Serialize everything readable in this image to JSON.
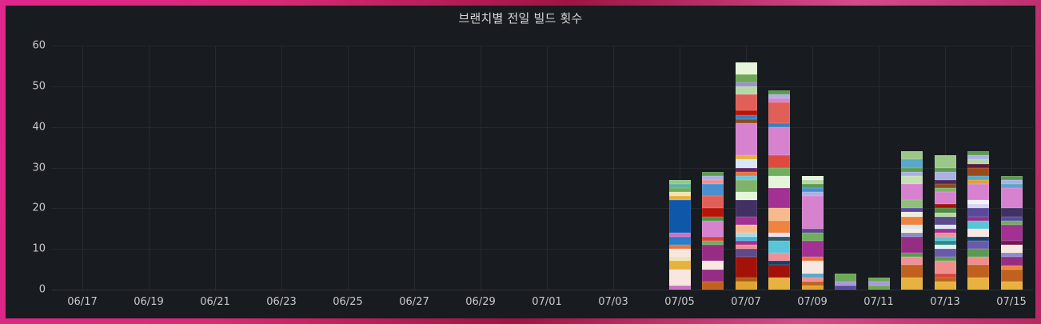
{
  "panel": {
    "title": "브랜치별 전일 빌드 횟수"
  },
  "theme": {
    "frame_gradient": [
      "#e0258c",
      "#9e1444",
      "#d44b8c"
    ],
    "panel_background": "#181b1f",
    "grid_color": "#26292e",
    "axis_text_color": "#c8c9cc",
    "title_color": "#d8d9da"
  },
  "chart_data": {
    "type": "bar",
    "stacked": true,
    "title": "브랜치별 전일 빌드 횟수",
    "xlabel": "",
    "ylabel": "",
    "grid": true,
    "legend": "none",
    "ylim": [
      0,
      60
    ],
    "y_ticks": [
      0,
      10,
      20,
      30,
      40,
      50,
      60
    ],
    "x_ticks": [
      {
        "label": "06/17",
        "day": 0
      },
      {
        "label": "06/19",
        "day": 2
      },
      {
        "label": "06/21",
        "day": 4
      },
      {
        "label": "06/23",
        "day": 6
      },
      {
        "label": "06/25",
        "day": 8
      },
      {
        "label": "06/27",
        "day": 10
      },
      {
        "label": "06/29",
        "day": 12
      },
      {
        "label": "07/01",
        "day": 14
      },
      {
        "label": "07/03",
        "day": 16
      },
      {
        "label": "07/05",
        "day": 18
      },
      {
        "label": "07/07",
        "day": 20
      },
      {
        "label": "07/09",
        "day": 22
      },
      {
        "label": "07/11",
        "day": 24
      },
      {
        "label": "07/13",
        "day": 26
      },
      {
        "label": "07/15",
        "day": 28
      }
    ],
    "bars": [
      {
        "date": "07/05",
        "day": 18,
        "total": 27,
        "segments": [
          {
            "c": "#c873c2",
            "v": 1
          },
          {
            "c": "#f8e6e0",
            "v": 4
          },
          {
            "c": "#e7b23f",
            "v": 2
          },
          {
            "c": "#f0e4b0",
            "v": 1
          },
          {
            "c": "#f8e6e0",
            "v": 2
          },
          {
            "c": "#e8743c",
            "v": 1
          },
          {
            "c": "#2a7cc9",
            "v": 2
          },
          {
            "c": "#cf6fc3",
            "v": 1
          },
          {
            "c": "#0f57a8",
            "v": 8
          },
          {
            "c": "#e7b23f",
            "v": 1
          },
          {
            "c": "#f0e4b0",
            "v": 1
          },
          {
            "c": "#6fae5e",
            "v": 1
          },
          {
            "c": "#5fb3a1",
            "v": 1
          },
          {
            "c": "#8fc98a",
            "v": 1
          }
        ]
      },
      {
        "date": "07/06",
        "day": 19,
        "total": 29,
        "segments": [
          {
            "c": "#c0611f",
            "v": 2
          },
          {
            "c": "#962d85",
            "v": 3
          },
          {
            "c": "#f8e6e0",
            "v": 2
          },
          {
            "c": "#962d85",
            "v": 4
          },
          {
            "c": "#6fae5e",
            "v": 1
          },
          {
            "c": "#d9453b",
            "v": 1
          },
          {
            "c": "#d682cf",
            "v": 4
          },
          {
            "c": "#4d8f3f",
            "v": 1
          },
          {
            "c": "#b71408",
            "v": 2
          },
          {
            "c": "#e05f58",
            "v": 3
          },
          {
            "c": "#4a90d0",
            "v": 3
          },
          {
            "c": "#ef9097",
            "v": 1
          },
          {
            "c": "#abb2e2",
            "v": 1
          },
          {
            "c": "#5b9a50",
            "v": 1
          }
        ]
      },
      {
        "date": "07/07",
        "day": 20,
        "total": 56,
        "segments": [
          {
            "c": "#e0a432",
            "v": 2
          },
          {
            "c": "#b05a12",
            "v": 1
          },
          {
            "c": "#a31208",
            "v": 5
          },
          {
            "c": "#5c4a8b",
            "v": 2
          },
          {
            "c": "#f08d8d",
            "v": 1
          },
          {
            "c": "#a33093",
            "v": 1
          },
          {
            "c": "#49b8d0",
            "v": 1
          },
          {
            "c": "#a8d8ea",
            "v": 1
          },
          {
            "c": "#f7ba8c",
            "v": 2
          },
          {
            "c": "#a33093",
            "v": 2
          },
          {
            "c": "#403063",
            "v": 4
          },
          {
            "c": "#e4f5da",
            "v": 2
          },
          {
            "c": "#7fb36a",
            "v": 3
          },
          {
            "c": "#6cc5d8",
            "v": 1
          },
          {
            "c": "#e8743c",
            "v": 1
          },
          {
            "c": "#6a2465",
            "v": 1
          },
          {
            "c": "#d6e8f5",
            "v": 2
          },
          {
            "c": "#e7b23f",
            "v": 1
          },
          {
            "c": "#d682cf",
            "v": 8
          },
          {
            "c": "#8f4a1c",
            "v": 1
          },
          {
            "c": "#3a7fc1",
            "v": 1
          },
          {
            "c": "#b71408",
            "v": 1
          },
          {
            "c": "#e05f58",
            "v": 4
          },
          {
            "c": "#b4d8a6",
            "v": 2
          },
          {
            "c": "#9b8fd0",
            "v": 1
          },
          {
            "c": "#6da757",
            "v": 2
          },
          {
            "c": "#e4f5da",
            "v": 3
          }
        ]
      },
      {
        "date": "07/08",
        "day": 21,
        "total": 49,
        "segments": [
          {
            "c": "#e7b23f",
            "v": 3
          },
          {
            "c": "#a31208",
            "v": 3
          },
          {
            "c": "#15406e",
            "v": 1
          },
          {
            "c": "#ef9097",
            "v": 2
          },
          {
            "c": "#58c5d8",
            "v": 3
          },
          {
            "c": "#2a5a68",
            "v": 1
          },
          {
            "c": "#eee0f2",
            "v": 1
          },
          {
            "c": "#ee8440",
            "v": 3
          },
          {
            "c": "#f7ba8c",
            "v": 3
          },
          {
            "c": "#a33093",
            "v": 5
          },
          {
            "c": "#e4f5da",
            "v": 3
          },
          {
            "c": "#6fae5e",
            "v": 2
          },
          {
            "c": "#e04a3e",
            "v": 3
          },
          {
            "c": "#d682cf",
            "v": 7
          },
          {
            "c": "#3a7fc1",
            "v": 1
          },
          {
            "c": "#e05f58",
            "v": 5
          },
          {
            "c": "#d682cf",
            "v": 1
          },
          {
            "c": "#abb2e2",
            "v": 1
          },
          {
            "c": "#5b9a50",
            "v": 1
          }
        ]
      },
      {
        "date": "07/09",
        "day": 22,
        "total": 28,
        "segments": [
          {
            "c": "#e0a432",
            "v": 1
          },
          {
            "c": "#c0611f",
            "v": 1
          },
          {
            "c": "#ef9097",
            "v": 1
          },
          {
            "c": "#58a8c8",
            "v": 1
          },
          {
            "c": "#f8e6e0",
            "v": 3
          },
          {
            "c": "#e8743c",
            "v": 1
          },
          {
            "c": "#a33093",
            "v": 4
          },
          {
            "c": "#6fae5e",
            "v": 2
          },
          {
            "c": "#5c4a8b",
            "v": 1
          },
          {
            "c": "#d682cf",
            "v": 8
          },
          {
            "c": "#abb2e2",
            "v": 1
          },
          {
            "c": "#4a90d0",
            "v": 1
          },
          {
            "c": "#5b9a50",
            "v": 1
          },
          {
            "c": "#b4d8a6",
            "v": 1
          },
          {
            "c": "#e4f5da",
            "v": 1
          }
        ]
      },
      {
        "date": "07/10",
        "day": 23,
        "total": 4,
        "segments": [
          {
            "c": "#584a9b",
            "v": 1
          },
          {
            "c": "#a89ad8",
            "v": 1
          },
          {
            "c": "#6da757",
            "v": 2
          }
        ]
      },
      {
        "date": "07/11",
        "day": 24,
        "total": 3,
        "segments": [
          {
            "c": "#6da757",
            "v": 1
          },
          {
            "c": "#a89ad8",
            "v": 1
          },
          {
            "c": "#6da757",
            "v": 1
          }
        ]
      },
      {
        "date": "07/12",
        "day": 25,
        "total": 34,
        "segments": [
          {
            "c": "#e7b23f",
            "v": 3
          },
          {
            "c": "#c0611f",
            "v": 3
          },
          {
            "c": "#ef9097",
            "v": 2
          },
          {
            "c": "#5b9a50",
            "v": 1
          },
          {
            "c": "#962d85",
            "v": 4
          },
          {
            "c": "#8b8cc9",
            "v": 1
          },
          {
            "c": "#f6efdc",
            "v": 1
          },
          {
            "c": "#d6e8f5",
            "v": 1
          },
          {
            "c": "#ee8440",
            "v": 2
          },
          {
            "c": "#f0ecd8",
            "v": 1
          },
          {
            "c": "#584a9b",
            "v": 1
          },
          {
            "c": "#8fbf7a",
            "v": 2
          },
          {
            "c": "#d682cf",
            "v": 4
          },
          {
            "c": "#c5e0b5",
            "v": 2
          },
          {
            "c": "#abb2e2",
            "v": 1
          },
          {
            "c": "#5b9a50",
            "v": 1
          },
          {
            "c": "#58a8c8",
            "v": 2
          },
          {
            "c": "#9bc889",
            "v": 2
          }
        ]
      },
      {
        "date": "07/13",
        "day": 26,
        "total": 33,
        "segments": [
          {
            "c": "#e7b23f",
            "v": 2
          },
          {
            "c": "#c0611f",
            "v": 1
          },
          {
            "c": "#d9453b",
            "v": 1
          },
          {
            "c": "#f08d8d",
            "v": 3
          },
          {
            "c": "#5b9a50",
            "v": 1
          },
          {
            "c": "#6a5aab",
            "v": 2
          },
          {
            "c": "#e2f1f5",
            "v": 1
          },
          {
            "c": "#2c8c88",
            "v": 1
          },
          {
            "c": "#58c5d8",
            "v": 1
          },
          {
            "c": "#ef9097",
            "v": 1
          },
          {
            "c": "#a33093",
            "v": 1
          },
          {
            "c": "#d6e8f5",
            "v": 1
          },
          {
            "c": "#5c4a8b",
            "v": 2
          },
          {
            "c": "#b4d8a6",
            "v": 1
          },
          {
            "c": "#4d8f3f",
            "v": 1
          },
          {
            "c": "#a31208",
            "v": 1
          },
          {
            "c": "#d682cf",
            "v": 3
          },
          {
            "c": "#7fb36a",
            "v": 1
          },
          {
            "c": "#8f4a1c",
            "v": 1
          },
          {
            "c": "#4a2a5c",
            "v": 1
          },
          {
            "c": "#abb2e2",
            "v": 2
          },
          {
            "c": "#5b9a50",
            "v": 1
          },
          {
            "c": "#9bc889",
            "v": 3
          }
        ]
      },
      {
        "date": "07/14",
        "day": 27,
        "total": 34,
        "segments": [
          {
            "c": "#e7b23f",
            "v": 3
          },
          {
            "c": "#c0611f",
            "v": 3
          },
          {
            "c": "#f08d8d",
            "v": 2
          },
          {
            "c": "#5b9a50",
            "v": 2
          },
          {
            "c": "#6a5aab",
            "v": 2
          },
          {
            "c": "#15406e",
            "v": 1
          },
          {
            "c": "#f8e6e0",
            "v": 2
          },
          {
            "c": "#58c5d8",
            "v": 2
          },
          {
            "c": "#962d85",
            "v": 1
          },
          {
            "c": "#584a9b",
            "v": 2
          },
          {
            "c": "#d6d6f2",
            "v": 1
          },
          {
            "c": "#f6f1f8",
            "v": 1
          },
          {
            "c": "#d682cf",
            "v": 4
          },
          {
            "c": "#e0a432",
            "v": 1
          },
          {
            "c": "#58a8c8",
            "v": 1
          },
          {
            "c": "#9a4a1a",
            "v": 2
          },
          {
            "c": "#5c1a3c",
            "v": 1
          },
          {
            "c": "#b4d8a6",
            "v": 1
          },
          {
            "c": "#abb2e2",
            "v": 1
          },
          {
            "c": "#5b9a50",
            "v": 1
          }
        ]
      },
      {
        "date": "07/15",
        "day": 28,
        "total": 28,
        "segments": [
          {
            "c": "#e7b23f",
            "v": 2
          },
          {
            "c": "#c0611f",
            "v": 3
          },
          {
            "c": "#ee8440",
            "v": 1
          },
          {
            "c": "#962d85",
            "v": 2
          },
          {
            "c": "#8b8cc9",
            "v": 1
          },
          {
            "c": "#f8e6e0",
            "v": 2
          },
          {
            "c": "#6b1b4b",
            "v": 1
          },
          {
            "c": "#a33093",
            "v": 4
          },
          {
            "c": "#6fae5e",
            "v": 1
          },
          {
            "c": "#584a9b",
            "v": 1
          },
          {
            "c": "#403063",
            "v": 2
          },
          {
            "c": "#d682cf",
            "v": 5
          },
          {
            "c": "#58a8c8",
            "v": 1
          },
          {
            "c": "#abb2e2",
            "v": 1
          },
          {
            "c": "#5b9a50",
            "v": 1
          }
        ]
      }
    ]
  }
}
